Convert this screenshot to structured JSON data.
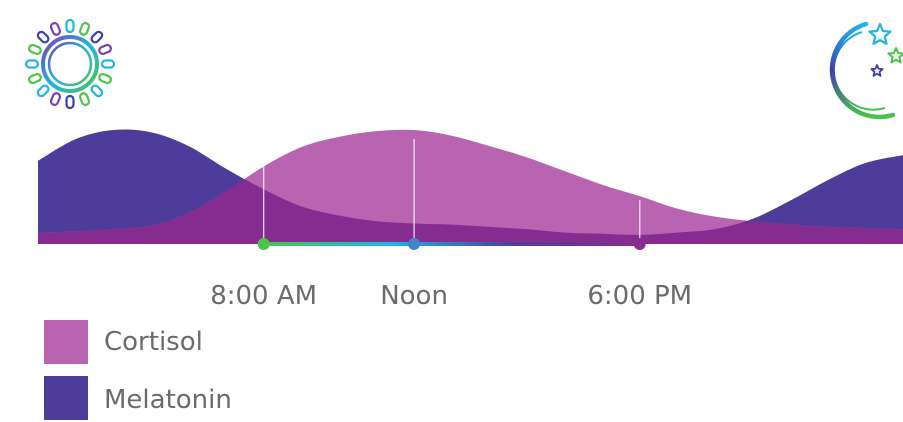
{
  "colors": {
    "cortisol": "#b964b1",
    "melatonin": "#4e3c9a",
    "overlap": "#842c90",
    "tick_text": "#6b6b6b",
    "gradient_stops": [
      "#4cc44a",
      "#1fb5e6",
      "#4e3c9a",
      "#8a2c8f"
    ]
  },
  "icons": {
    "left": "sun-icon",
    "right": "moon-stars-icon"
  },
  "chart_data": {
    "type": "area",
    "title": "",
    "xlabel": "",
    "ylabel": "",
    "x_marked": [
      {
        "label": "8:00 AM",
        "hour": 8
      },
      {
        "label": "Noon",
        "hour": 12
      },
      {
        "label": "6:00 PM",
        "hour": 18
      }
    ],
    "series": [
      {
        "name": "Cortisol",
        "x": [
          2,
          3,
          4,
          5,
          6,
          7,
          8,
          9,
          10,
          11,
          12,
          13,
          14,
          15,
          16,
          17,
          18,
          19,
          20,
          21,
          22,
          23,
          24,
          25
        ],
        "values": [
          0.1,
          0.11,
          0.13,
          0.16,
          0.27,
          0.46,
          0.68,
          0.85,
          0.94,
          0.99,
          1.0,
          0.95,
          0.86,
          0.76,
          0.64,
          0.52,
          0.42,
          0.31,
          0.24,
          0.2,
          0.17,
          0.15,
          0.14,
          0.13
        ]
      },
      {
        "name": "Melatonin",
        "x": [
          2,
          3,
          4,
          5,
          6,
          7,
          8,
          9,
          10,
          11,
          12,
          13,
          14,
          15,
          16,
          17,
          18,
          19,
          20,
          21,
          22,
          23,
          24,
          25
        ],
        "values": [
          0.73,
          0.92,
          1.0,
          0.98,
          0.86,
          0.66,
          0.48,
          0.33,
          0.25,
          0.2,
          0.18,
          0.17,
          0.15,
          0.13,
          0.1,
          0.09,
          0.08,
          0.1,
          0.13,
          0.22,
          0.38,
          0.56,
          0.71,
          0.78
        ]
      }
    ],
    "xlim": [
      2,
      25
    ],
    "ylim": [
      0,
      1
    ],
    "grid": false,
    "legend_position": "bottom-left"
  }
}
